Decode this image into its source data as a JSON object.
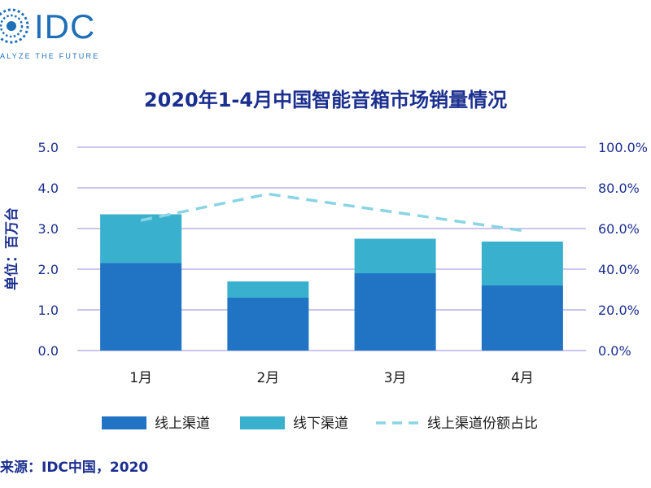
{
  "logo": {
    "text": "IDC",
    "tagline": "ALYZE THE FUTURE"
  },
  "colors": {
    "online": "#2174c4",
    "offline": "#3ab0cf",
    "share_line": "#8ad4e4",
    "grid": "#b9b3e8",
    "text": "#1b2f8f"
  },
  "source": "来源：IDC中国，2020",
  "chart_data": {
    "type": "bar",
    "stacked": true,
    "title": "2020年1-4月中国智能音箱市场销量情况",
    "ylabel": "单位：百万台",
    "xlabel": "",
    "categories": [
      "1月",
      "2月",
      "3月",
      "4月"
    ],
    "ylim": [
      0,
      5
    ],
    "y_ticks": [
      "0.0",
      "1.0",
      "2.0",
      "3.0",
      "4.0",
      "5.0"
    ],
    "y2lim": [
      0,
      100
    ],
    "y2_ticks": [
      "0.0%",
      "20.0%",
      "40.0%",
      "60.0%",
      "80.0%",
      "100.0%"
    ],
    "grid": true,
    "legend_position": "bottom",
    "series": [
      {
        "name": "线上渠道",
        "type": "bar",
        "values": [
          2.15,
          1.3,
          1.9,
          1.6
        ]
      },
      {
        "name": "线下渠道",
        "type": "bar",
        "values": [
          1.2,
          0.4,
          0.85,
          1.08
        ]
      },
      {
        "name": "线上渠道份额占比",
        "type": "line",
        "axis": "right",
        "dashed": true,
        "values": [
          64,
          77,
          68,
          59
        ]
      }
    ]
  }
}
